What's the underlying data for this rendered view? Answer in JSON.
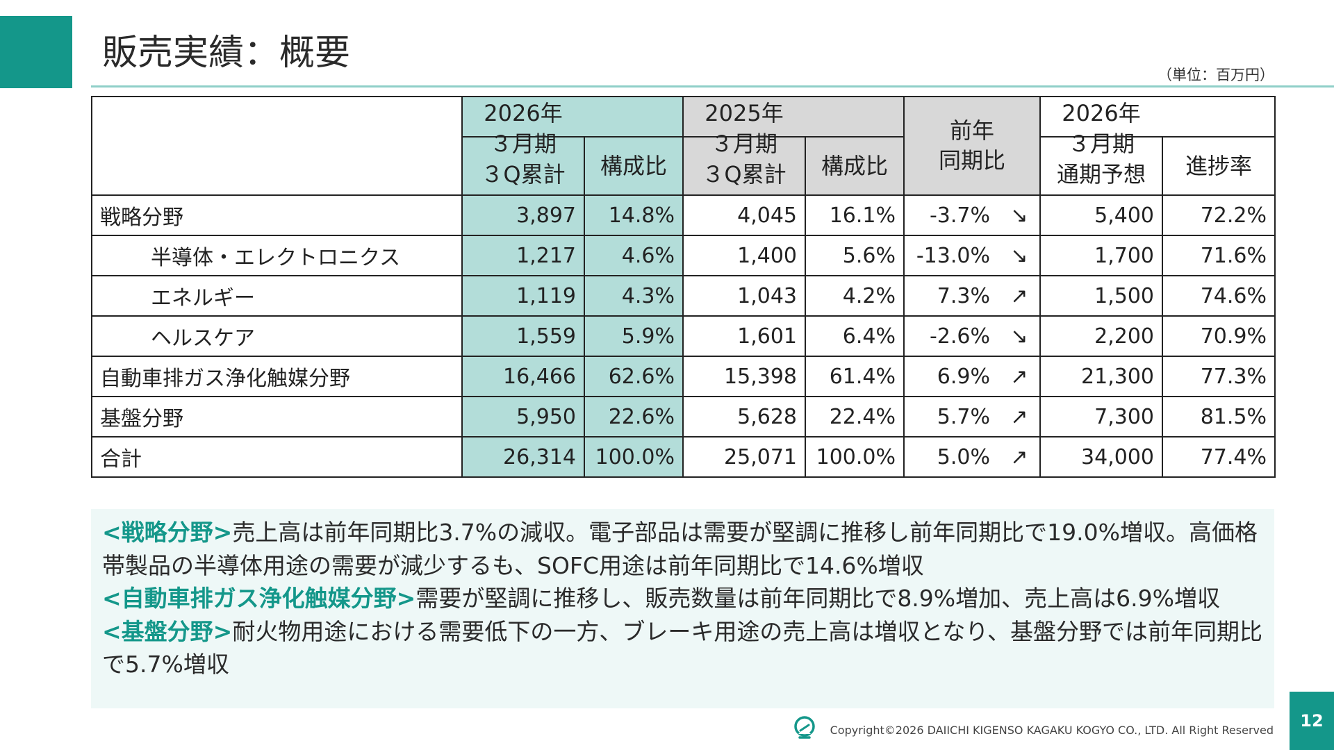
{
  "slide": {
    "title": "販売実績：概要",
    "unit": "（単位：百万円）",
    "page_number": "12",
    "copyright": "Copyright©2026 DAIICHI KIGENSO KAGAKU KOGYO CO., LTD. All Right Reserved",
    "accent_color": "#14978a"
  },
  "table": {
    "header": {
      "fy26_3q": "2026年\n３月期\n３Q累計",
      "fy26_share": "構成比",
      "fy25_3q": "2025年\n３月期\n３Q累計",
      "fy25_share": "構成比",
      "yoy": "前年\n同期比",
      "fy26_forecast": "2026年\n３月期\n通期予想",
      "progress": "進捗率"
    },
    "rows": [
      {
        "label": "戦略分野",
        "fy26": "3,897",
        "fy26_share": "14.8%",
        "fy25": "4,045",
        "fy25_share": "16.1%",
        "yoy": "-3.7%",
        "arrow": "↘",
        "forecast": "5,400",
        "progress": "72.2%"
      },
      {
        "label": "半導体・エレクトロニクス",
        "fy26": "1,217",
        "fy26_share": "4.6%",
        "fy25": "1,400",
        "fy25_share": "5.6%",
        "yoy": "-13.0%",
        "arrow": "↘",
        "forecast": "1,700",
        "progress": "71.6%"
      },
      {
        "label": "エネルギー",
        "fy26": "1,119",
        "fy26_share": "4.3%",
        "fy25": "1,043",
        "fy25_share": "4.2%",
        "yoy": "7.3%",
        "arrow": "↗",
        "forecast": "1,500",
        "progress": "74.6%"
      },
      {
        "label": "ヘルスケア",
        "fy26": "1,559",
        "fy26_share": "5.9%",
        "fy25": "1,601",
        "fy25_share": "6.4%",
        "yoy": "-2.6%",
        "arrow": "↘",
        "forecast": "2,200",
        "progress": "70.9%"
      },
      {
        "label": "自動車排ガス浄化触媒分野",
        "fy26": "16,466",
        "fy26_share": "62.6%",
        "fy25": "15,398",
        "fy25_share": "61.4%",
        "yoy": "6.9%",
        "arrow": "↗",
        "forecast": "21,300",
        "progress": "77.3%"
      },
      {
        "label": "基盤分野",
        "fy26": "5,950",
        "fy26_share": "22.6%",
        "fy25": "5,628",
        "fy25_share": "22.4%",
        "yoy": "5.7%",
        "arrow": "↗",
        "forecast": "7,300",
        "progress": "81.5%"
      },
      {
        "label": "合計",
        "fy26": "26,314",
        "fy26_share": "100.0%",
        "fy25": "25,071",
        "fy25_share": "100.0%",
        "yoy": "5.0%",
        "arrow": "↗",
        "forecast": "34,000",
        "progress": "77.4%"
      }
    ]
  },
  "notes": [
    {
      "tag": "<戦略分野>",
      "text": "売上高は前年同期比3.7%の減収。電子部品は需要が堅調に推移し前年同期比で19.0%増収。高価格帯製品の半導体用途の需要が減少するも、SOFC用途は前年同期比で14.6%増収"
    },
    {
      "tag": "<自動車排ガス浄化触媒分野>",
      "text": "需要が堅調に推移し、販売数量は前年同期比で8.9%増加、売上高は6.9%増収"
    },
    {
      "tag": "<基盤分野>",
      "text": "耐火物用途における需要低下の一方、ブレーキ用途の売上高は増収となり、基盤分野では前年同期比で5.7%増収"
    }
  ]
}
